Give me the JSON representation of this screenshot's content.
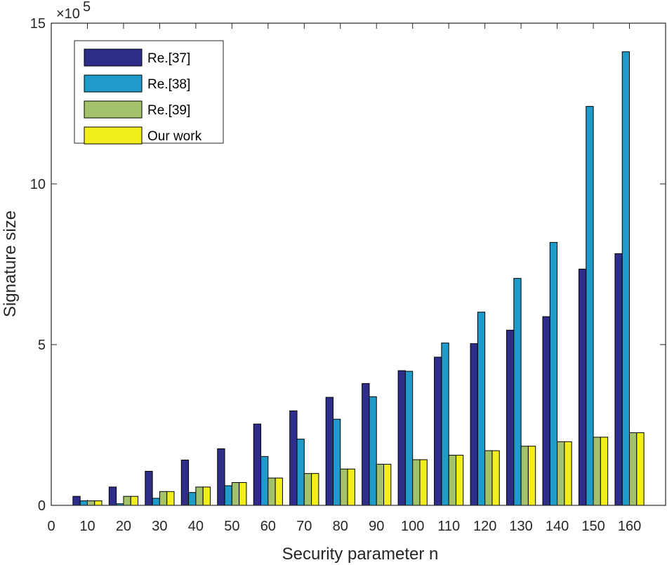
{
  "chart_data": {
    "type": "bar",
    "title": "",
    "xlabel": "Security parameter n",
    "ylabel": "Signature size",
    "y_exponent_label": "×10",
    "y_exponent_power": "5",
    "y_scale": 100000,
    "xlim": [
      0,
      170
    ],
    "ylim": [
      0,
      15
    ],
    "x_ticks": [
      "0",
      "10",
      "20",
      "30",
      "40",
      "50",
      "60",
      "70",
      "80",
      "90",
      "100",
      "110",
      "120",
      "130",
      "140",
      "150",
      "160"
    ],
    "y_ticks": [
      "0",
      "5",
      "10",
      "15"
    ],
    "categories": [
      10,
      20,
      30,
      40,
      50,
      60,
      70,
      80,
      90,
      100,
      110,
      120,
      130,
      140,
      150,
      160
    ],
    "legend_position": "top-left",
    "series": [
      {
        "name": "Re.[37]",
        "color": "#2e2e8a",
        "values": [
          0.28,
          0.57,
          1.06,
          1.41,
          1.76,
          2.53,
          2.94,
          3.36,
          3.79,
          4.19,
          4.61,
          5.03,
          5.45,
          5.87,
          7.35,
          7.83
        ]
      },
      {
        "name": "Re.[38]",
        "color": "#1e9bc8",
        "values": [
          0.14,
          0.05,
          0.22,
          0.4,
          0.61,
          1.52,
          2.06,
          2.68,
          3.38,
          4.17,
          5.05,
          6.01,
          7.06,
          8.18,
          12.41,
          14.11
        ]
      },
      {
        "name": "Re.[39]",
        "color": "#a3c26b",
        "values": [
          0.14,
          0.28,
          0.43,
          0.57,
          0.71,
          0.85,
          0.99,
          1.13,
          1.28,
          1.42,
          1.56,
          1.7,
          1.84,
          1.98,
          2.12,
          2.26
        ]
      },
      {
        "name": "Our work",
        "color": "#f2ee1e",
        "values": [
          0.14,
          0.28,
          0.43,
          0.57,
          0.71,
          0.85,
          0.99,
          1.13,
          1.28,
          1.42,
          1.56,
          1.7,
          1.84,
          1.98,
          2.12,
          2.26
        ]
      }
    ]
  }
}
